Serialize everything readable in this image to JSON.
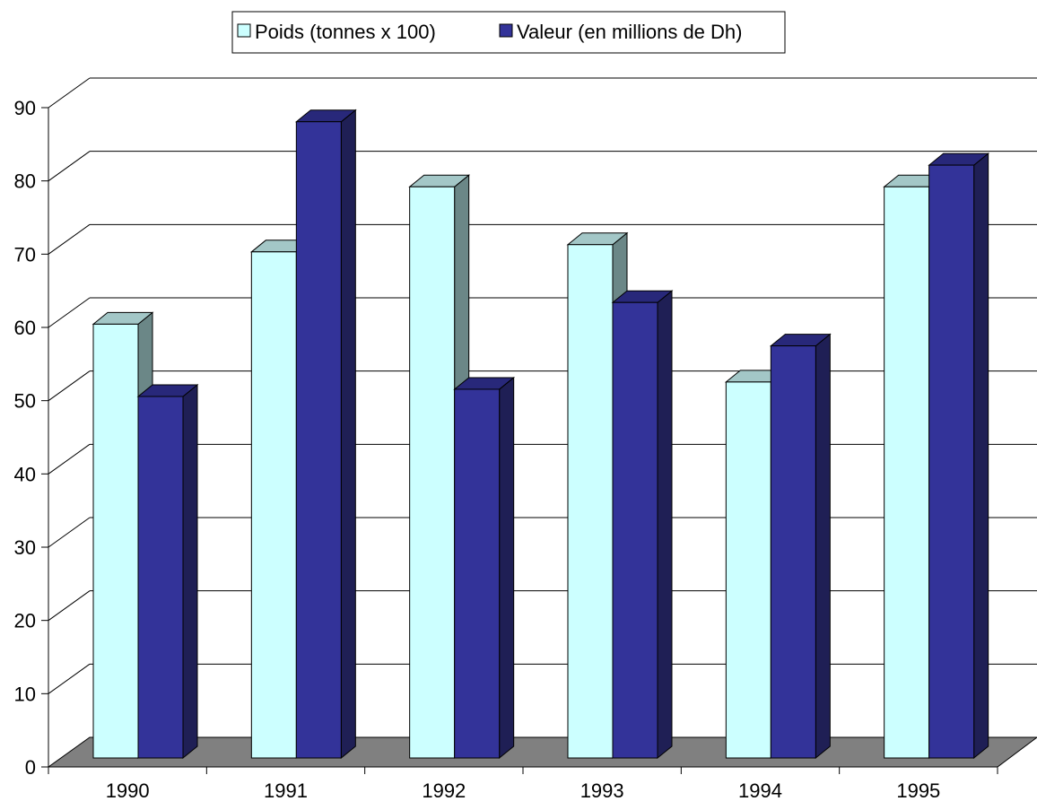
{
  "chart_data": {
    "type": "bar",
    "categories": [
      "1990",
      "1991",
      "1992",
      "1993",
      "1994",
      "1995"
    ],
    "series": [
      {
        "name": "Poids (tonnes x 100)",
        "values": [
          60,
          70,
          79,
          71,
          52,
          79
        ],
        "color": "#ccffff",
        "side_color": "#6b8787",
        "top_color": "#a3c7c7"
      },
      {
        "name": "Valeur (en millions de Dh)",
        "values": [
          50,
          88,
          51,
          63,
          57,
          82
        ],
        "color": "#333399",
        "side_color": "#1f1f55",
        "top_color": "#28287a"
      }
    ],
    "y_ticks": [
      "0",
      "10",
      "20",
      "30",
      "40",
      "50",
      "60",
      "70",
      "80",
      "90"
    ],
    "ylim": [
      0,
      90
    ],
    "grid": true,
    "legend_position": "top-center",
    "floor_color": "#808080",
    "three_d": true
  }
}
